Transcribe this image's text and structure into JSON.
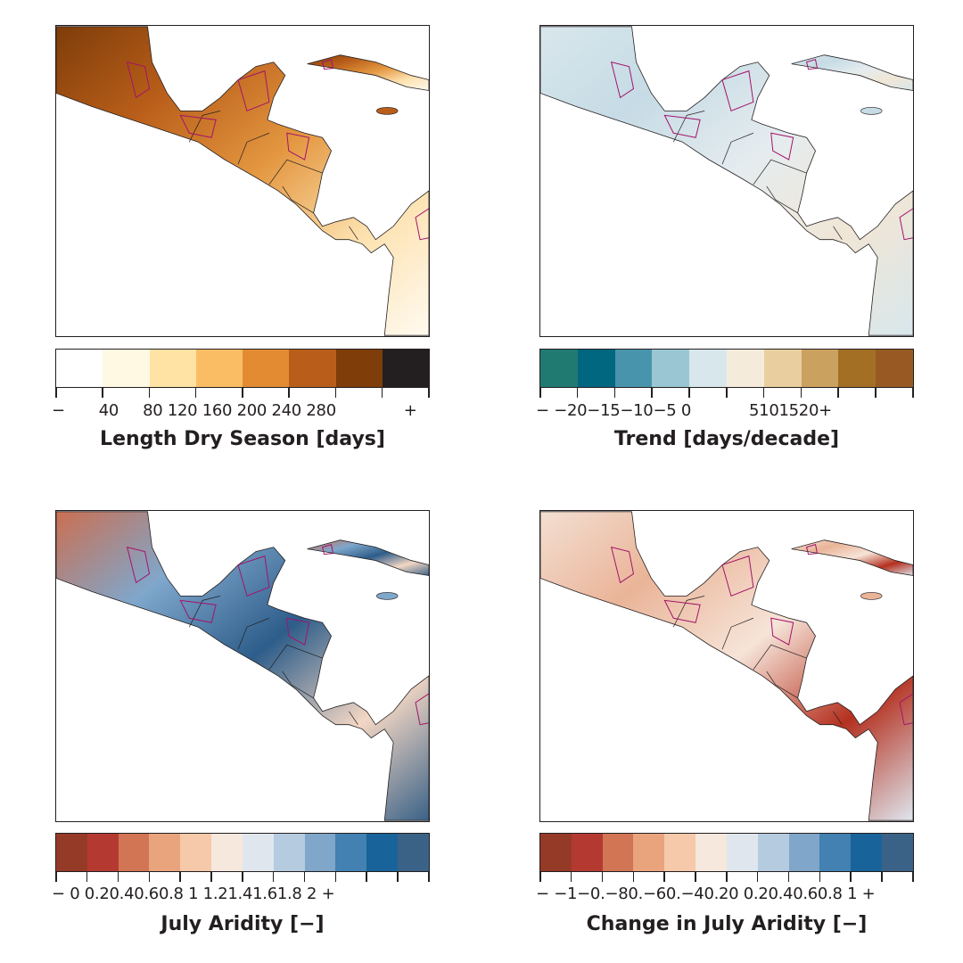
{
  "panels": [
    {
      "title": "Length Dry Season [days]",
      "tick_labels": "−       40     80 120 160 200 240 280              +",
      "colors": [
        "#ffffff",
        "#fff8e2",
        "#fee3a5",
        "#fbbd63",
        "#e38b33",
        "#b95e1a",
        "#7e3d09",
        "#231f20"
      ],
      "map_fill": [
        "#7e3d09",
        "#b95e1a",
        "#e3963f",
        "#fde2b0",
        "#fffaf0"
      ]
    },
    {
      "title": "Trend [days/decade]",
      "tick_labels": "− −20−15−10−5 0            5101520+",
      "colors": [
        "#217a72",
        "#01667f",
        "#4894ad",
        "#9ac6d4",
        "#d8e7ec",
        "#f5ebdb",
        "#e9cf9f",
        "#cba160",
        "#a36f24",
        "#985a22"
      ],
      "map_fill": [
        "#d8e7ec",
        "#c6dbe5",
        "#e5ecef",
        "#f0e6d6",
        "#d8e7ec"
      ]
    },
    {
      "title": "July Aridity [−]",
      "tick_labels": "− 0 0.20.40.60.8 1 1.21.41.61.8 2 +",
      "colors": [
        "#963a28",
        "#b43a31",
        "#d17555",
        "#e9a47d",
        "#f6c9aa",
        "#f6e8dd",
        "#e0e6ed",
        "#b5cbe0",
        "#80a6c9",
        "#4281b1",
        "#186399",
        "#3a6287"
      ],
      "map_fill": [
        "#cb6f51",
        "#7fa7cc",
        "#2d5d8a",
        "#f3d7c4",
        "#3a6287"
      ]
    },
    {
      "title": "Change in July Aridity [−]",
      "tick_labels": "− −1−0.−80.−60.−40.20 0.20.40.60.8 1 +",
      "colors": [
        "#963a28",
        "#b43a31",
        "#d17555",
        "#e9a47d",
        "#f6c9aa",
        "#f6e8dd",
        "#e0e6ed",
        "#b5cbe0",
        "#80a6c9",
        "#4281b1",
        "#186399",
        "#3a6287"
      ],
      "map_fill": [
        "#f3dfd2",
        "#eab498",
        "#f6e4d8",
        "#b4301f",
        "#dfe6ee"
      ]
    }
  ]
}
